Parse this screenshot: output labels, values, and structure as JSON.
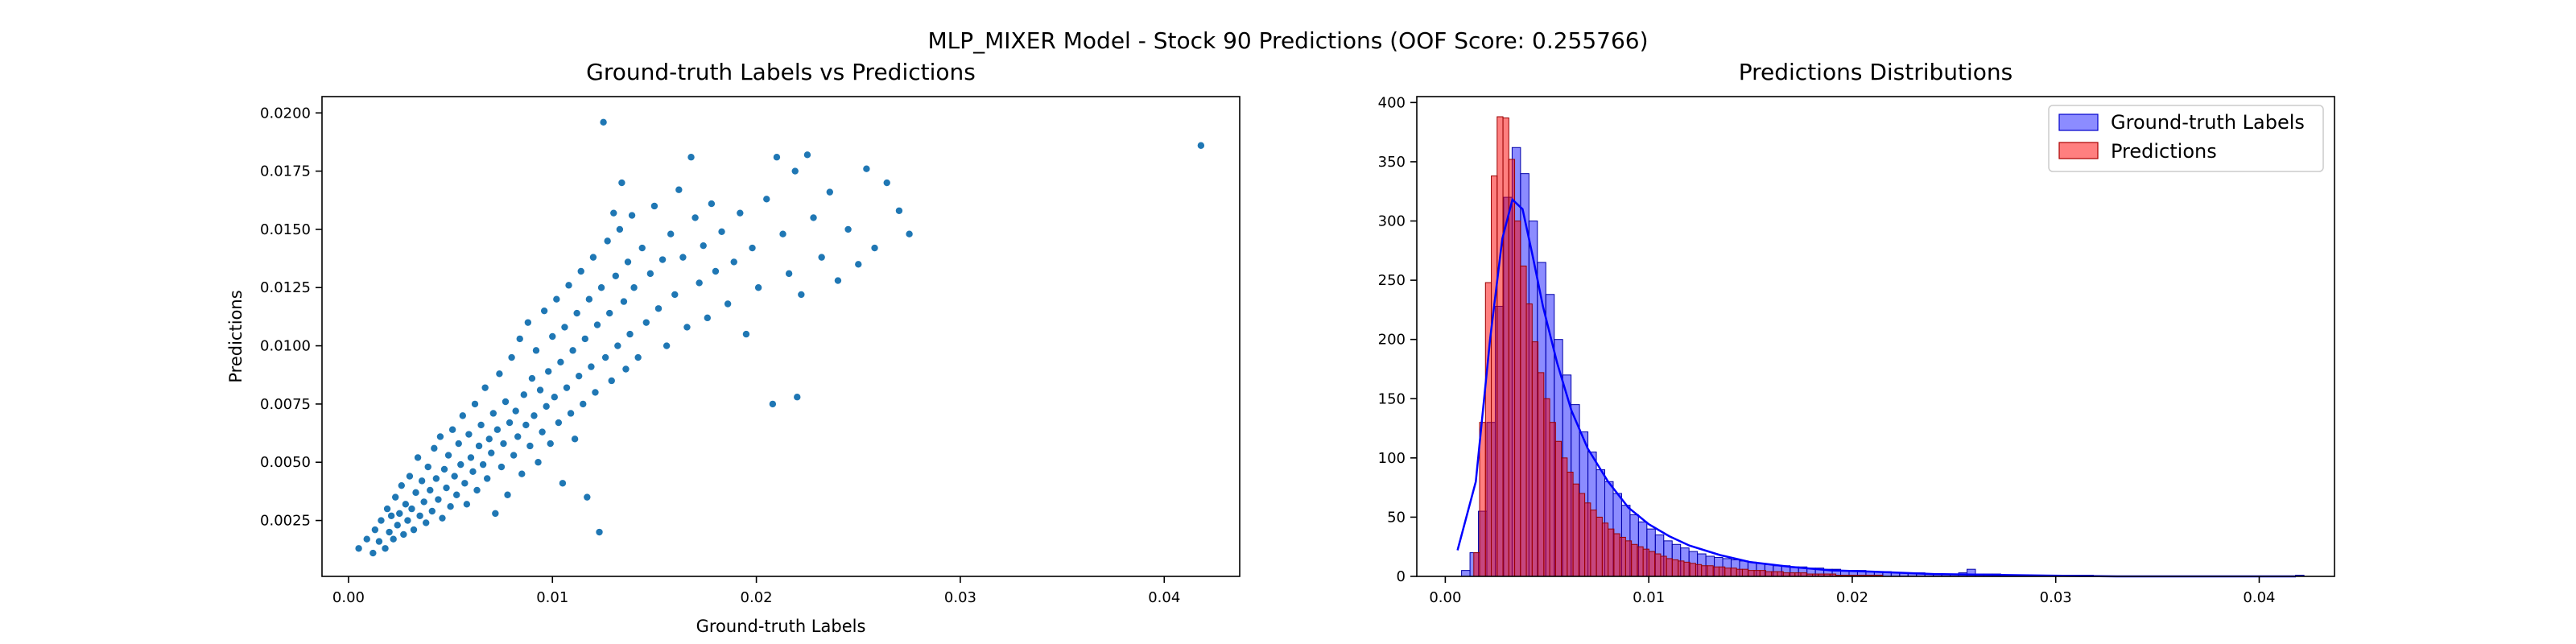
{
  "figure": {
    "title": "MLP_MIXER Model - Stock 90 Predictions (OOF Score: 0.255766)"
  },
  "chart_data": [
    {
      "type": "scatter",
      "title": "Ground-truth Labels vs Predictions",
      "xlabel": "Ground-truth Labels",
      "ylabel": "Predictions",
      "xlim": [
        -0.0013,
        0.0437
      ],
      "ylim": [
        0.0001,
        0.0207
      ],
      "x_ticks": [
        0.0,
        0.01,
        0.02,
        0.03,
        0.04
      ],
      "x_tick_labels": [
        "0.00",
        "0.01",
        "0.02",
        "0.03",
        "0.04"
      ],
      "y_ticks": [
        0.0025,
        0.005,
        0.0075,
        0.01,
        0.0125,
        0.015,
        0.0175,
        0.02
      ],
      "y_tick_labels": [
        "0.0025",
        "0.0050",
        "0.0075",
        "0.0100",
        "0.0125",
        "0.0150",
        "0.0175",
        "0.0200"
      ],
      "color": "#1f77b4",
      "points": [
        [
          0.0005,
          0.0013
        ],
        [
          0.0009,
          0.0017
        ],
        [
          0.0012,
          0.0011
        ],
        [
          0.0013,
          0.0021
        ],
        [
          0.0015,
          0.0016
        ],
        [
          0.0016,
          0.0025
        ],
        [
          0.0018,
          0.0013
        ],
        [
          0.0019,
          0.003
        ],
        [
          0.002,
          0.002
        ],
        [
          0.0021,
          0.0027
        ],
        [
          0.0022,
          0.0017
        ],
        [
          0.0023,
          0.0035
        ],
        [
          0.0024,
          0.0023
        ],
        [
          0.0025,
          0.0028
        ],
        [
          0.0026,
          0.004
        ],
        [
          0.0027,
          0.0019
        ],
        [
          0.0028,
          0.0032
        ],
        [
          0.0029,
          0.0025
        ],
        [
          0.003,
          0.0044
        ],
        [
          0.0031,
          0.003
        ],
        [
          0.0032,
          0.0021
        ],
        [
          0.0033,
          0.0037
        ],
        [
          0.0034,
          0.0052
        ],
        [
          0.0035,
          0.0027
        ],
        [
          0.0036,
          0.0042
        ],
        [
          0.0037,
          0.0033
        ],
        [
          0.0038,
          0.0024
        ],
        [
          0.0039,
          0.0048
        ],
        [
          0.004,
          0.0038
        ],
        [
          0.0041,
          0.0029
        ],
        [
          0.0042,
          0.0056
        ],
        [
          0.0043,
          0.0043
        ],
        [
          0.0044,
          0.0034
        ],
        [
          0.0045,
          0.0061
        ],
        [
          0.0046,
          0.0026
        ],
        [
          0.0047,
          0.0047
        ],
        [
          0.0048,
          0.0039
        ],
        [
          0.0049,
          0.0053
        ],
        [
          0.005,
          0.0031
        ],
        [
          0.0051,
          0.0064
        ],
        [
          0.0052,
          0.0044
        ],
        [
          0.0053,
          0.0036
        ],
        [
          0.0054,
          0.0058
        ],
        [
          0.0055,
          0.0049
        ],
        [
          0.0056,
          0.007
        ],
        [
          0.0057,
          0.0041
        ],
        [
          0.0058,
          0.0032
        ],
        [
          0.0059,
          0.0062
        ],
        [
          0.006,
          0.0052
        ],
        [
          0.0061,
          0.0046
        ],
        [
          0.0062,
          0.0075
        ],
        [
          0.0063,
          0.0038
        ],
        [
          0.0064,
          0.0057
        ],
        [
          0.0065,
          0.0066
        ],
        [
          0.0066,
          0.0049
        ],
        [
          0.0067,
          0.0082
        ],
        [
          0.0068,
          0.0043
        ],
        [
          0.0069,
          0.006
        ],
        [
          0.007,
          0.0054
        ],
        [
          0.0071,
          0.0071
        ],
        [
          0.0072,
          0.0028
        ],
        [
          0.0073,
          0.0064
        ],
        [
          0.0074,
          0.0088
        ],
        [
          0.0075,
          0.0048
        ],
        [
          0.0076,
          0.0058
        ],
        [
          0.0077,
          0.0076
        ],
        [
          0.0078,
          0.0036
        ],
        [
          0.0079,
          0.0067
        ],
        [
          0.008,
          0.0095
        ],
        [
          0.0081,
          0.0053
        ],
        [
          0.0082,
          0.0072
        ],
        [
          0.0083,
          0.0061
        ],
        [
          0.0084,
          0.0103
        ],
        [
          0.0085,
          0.0045
        ],
        [
          0.0086,
          0.0079
        ],
        [
          0.0087,
          0.0066
        ],
        [
          0.0088,
          0.011
        ],
        [
          0.0089,
          0.0057
        ],
        [
          0.009,
          0.0086
        ],
        [
          0.0091,
          0.007
        ],
        [
          0.0092,
          0.0098
        ],
        [
          0.0093,
          0.005
        ],
        [
          0.0094,
          0.0081
        ],
        [
          0.0095,
          0.0063
        ],
        [
          0.0096,
          0.0115
        ],
        [
          0.0097,
          0.0074
        ],
        [
          0.0098,
          0.0089
        ],
        [
          0.0099,
          0.0058
        ],
        [
          0.01,
          0.0104
        ],
        [
          0.0101,
          0.0078
        ],
        [
          0.0102,
          0.012
        ],
        [
          0.0103,
          0.0067
        ],
        [
          0.0104,
          0.0093
        ],
        [
          0.0105,
          0.0041
        ],
        [
          0.0106,
          0.0108
        ],
        [
          0.0107,
          0.0082
        ],
        [
          0.0108,
          0.0126
        ],
        [
          0.0109,
          0.0071
        ],
        [
          0.011,
          0.0098
        ],
        [
          0.0111,
          0.006
        ],
        [
          0.0112,
          0.0114
        ],
        [
          0.0113,
          0.0087
        ],
        [
          0.0114,
          0.0132
        ],
        [
          0.0115,
          0.0075
        ],
        [
          0.0116,
          0.0103
        ],
        [
          0.0117,
          0.0035
        ],
        [
          0.0118,
          0.012
        ],
        [
          0.0119,
          0.0091
        ],
        [
          0.012,
          0.0138
        ],
        [
          0.0121,
          0.008
        ],
        [
          0.0122,
          0.0109
        ],
        [
          0.0123,
          0.002
        ],
        [
          0.0124,
          0.0125
        ],
        [
          0.0125,
          0.0196
        ],
        [
          0.0126,
          0.0095
        ],
        [
          0.0127,
          0.0145
        ],
        [
          0.0128,
          0.0114
        ],
        [
          0.0129,
          0.0085
        ],
        [
          0.013,
          0.0157
        ],
        [
          0.0131,
          0.013
        ],
        [
          0.0132,
          0.01
        ],
        [
          0.0133,
          0.015
        ],
        [
          0.0134,
          0.017
        ],
        [
          0.0135,
          0.0119
        ],
        [
          0.0136,
          0.009
        ],
        [
          0.0137,
          0.0136
        ],
        [
          0.0138,
          0.0105
        ],
        [
          0.0139,
          0.0156
        ],
        [
          0.014,
          0.0125
        ],
        [
          0.0142,
          0.0095
        ],
        [
          0.0144,
          0.0142
        ],
        [
          0.0146,
          0.011
        ],
        [
          0.0148,
          0.0131
        ],
        [
          0.015,
          0.016
        ],
        [
          0.0152,
          0.0116
        ],
        [
          0.0154,
          0.0137
        ],
        [
          0.0156,
          0.01
        ],
        [
          0.0158,
          0.0148
        ],
        [
          0.016,
          0.0122
        ],
        [
          0.0162,
          0.0167
        ],
        [
          0.0164,
          0.0138
        ],
        [
          0.0166,
          0.0108
        ],
        [
          0.0168,
          0.0181
        ],
        [
          0.017,
          0.0155
        ],
        [
          0.0172,
          0.0127
        ],
        [
          0.0174,
          0.0143
        ],
        [
          0.0176,
          0.0112
        ],
        [
          0.0178,
          0.0161
        ],
        [
          0.018,
          0.0132
        ],
        [
          0.0183,
          0.0149
        ],
        [
          0.0186,
          0.0118
        ],
        [
          0.0189,
          0.0136
        ],
        [
          0.0192,
          0.0157
        ],
        [
          0.0195,
          0.0105
        ],
        [
          0.0198,
          0.0142
        ],
        [
          0.0201,
          0.0125
        ],
        [
          0.0205,
          0.0163
        ],
        [
          0.0208,
          0.0075
        ],
        [
          0.021,
          0.0181
        ],
        [
          0.0213,
          0.0148
        ],
        [
          0.0216,
          0.0131
        ],
        [
          0.0219,
          0.0175
        ],
        [
          0.022,
          0.0078
        ],
        [
          0.0222,
          0.0122
        ],
        [
          0.0225,
          0.0182
        ],
        [
          0.0228,
          0.0155
        ],
        [
          0.0232,
          0.0138
        ],
        [
          0.0236,
          0.0166
        ],
        [
          0.024,
          0.0128
        ],
        [
          0.0245,
          0.015
        ],
        [
          0.025,
          0.0135
        ],
        [
          0.0254,
          0.0176
        ],
        [
          0.0258,
          0.0142
        ],
        [
          0.0264,
          0.017
        ],
        [
          0.027,
          0.0158
        ],
        [
          0.0275,
          0.0148
        ],
        [
          0.0418,
          0.0186
        ]
      ]
    },
    {
      "type": "histogram",
      "title": "Predictions Distributions",
      "xlabel": "",
      "ylabel": "",
      "xlim": [
        -0.0014,
        0.0437
      ],
      "ylim": [
        0,
        405
      ],
      "x_ticks": [
        0.0,
        0.01,
        0.02,
        0.03,
        0.04
      ],
      "x_tick_labels": [
        "0.00",
        "0.01",
        "0.02",
        "0.03",
        "0.04"
      ],
      "y_ticks": [
        0,
        50,
        100,
        150,
        200,
        250,
        300,
        350,
        400
      ],
      "y_tick_labels": [
        "0",
        "50",
        "100",
        "150",
        "200",
        "250",
        "300",
        "350",
        "400"
      ],
      "legend_position": "top-right",
      "series": [
        {
          "name": "Ground-truth Labels",
          "color": "#0000ff",
          "bin_start": 0.0008,
          "bin_width": 0.000414,
          "counts": [
            5,
            20,
            55,
            130,
            228,
            320,
            362,
            340,
            300,
            265,
            238,
            200,
            170,
            145,
            122,
            105,
            90,
            80,
            70,
            60,
            52,
            46,
            40,
            35,
            30,
            27,
            24,
            21,
            19,
            17,
            16,
            15,
            14,
            13,
            12,
            11,
            10,
            9,
            9,
            8,
            8,
            7,
            7,
            6,
            6,
            5,
            5,
            5,
            4,
            4,
            4,
            3,
            3,
            3,
            3,
            2,
            2,
            2,
            2,
            3,
            6,
            2,
            2,
            2,
            1,
            1,
            1,
            1,
            1,
            1,
            1,
            1,
            1,
            1,
            1,
            0,
            0,
            0,
            0,
            0,
            0,
            0,
            0,
            0,
            0,
            0,
            0,
            0,
            0,
            0,
            0,
            0,
            0,
            0,
            0,
            0,
            0,
            0,
            0,
            1
          ],
          "kde": [
            [
              0.0006,
              22
            ],
            [
              0.0015,
              80
            ],
            [
              0.0022,
              200
            ],
            [
              0.0028,
              285
            ],
            [
              0.0033,
              318
            ],
            [
              0.0038,
              310
            ],
            [
              0.0043,
              270
            ],
            [
              0.0048,
              228
            ],
            [
              0.0055,
              180
            ],
            [
              0.0062,
              140
            ],
            [
              0.007,
              108
            ],
            [
              0.008,
              80
            ],
            [
              0.009,
              58
            ],
            [
              0.01,
              44
            ],
            [
              0.011,
              34
            ],
            [
              0.012,
              26
            ],
            [
              0.0135,
              18
            ],
            [
              0.015,
              12
            ],
            [
              0.017,
              8
            ],
            [
              0.019,
              5
            ],
            [
              0.021,
              4
            ],
            [
              0.024,
              2
            ],
            [
              0.028,
              1
            ],
            [
              0.033,
              0
            ],
            [
              0.0418,
              0
            ]
          ]
        },
        {
          "name": "Predictions",
          "color": "#ff0000",
          "bin_start": 0.0014,
          "bin_width": 0.000287,
          "counts": [
            20,
            130,
            248,
            338,
            388,
            387,
            352,
            300,
            262,
            230,
            198,
            172,
            150,
            130,
            114,
            100,
            88,
            78,
            70,
            62,
            56,
            50,
            45,
            40,
            36,
            33,
            30,
            27,
            25,
            23,
            21,
            19,
            17,
            15,
            14,
            13,
            12,
            11,
            10,
            9,
            9,
            8,
            8,
            7,
            7,
            6,
            6,
            5,
            5,
            5,
            4,
            4,
            4,
            3,
            3,
            3,
            3,
            2,
            2,
            2,
            2,
            2,
            1,
            1,
            1,
            1,
            1,
            1,
            1,
            1
          ]
        }
      ]
    }
  ]
}
